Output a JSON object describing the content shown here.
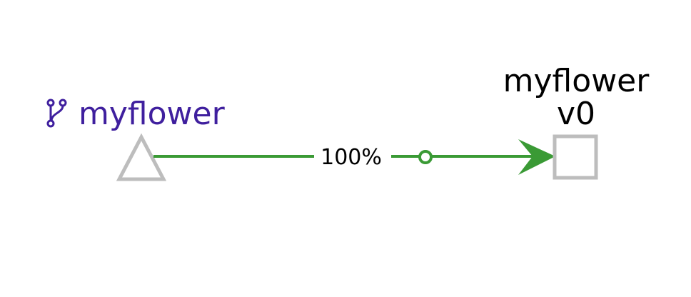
{
  "app_node": {
    "label": "myflower",
    "icon": "branch-icon",
    "label_color": "#3f1f9e",
    "shape_color": "#bdbdbd"
  },
  "edge": {
    "label": "100%",
    "color": "#3a9a35"
  },
  "version_node": {
    "name": "myflower",
    "version": "v0",
    "shape_color": "#bdbdbd"
  }
}
